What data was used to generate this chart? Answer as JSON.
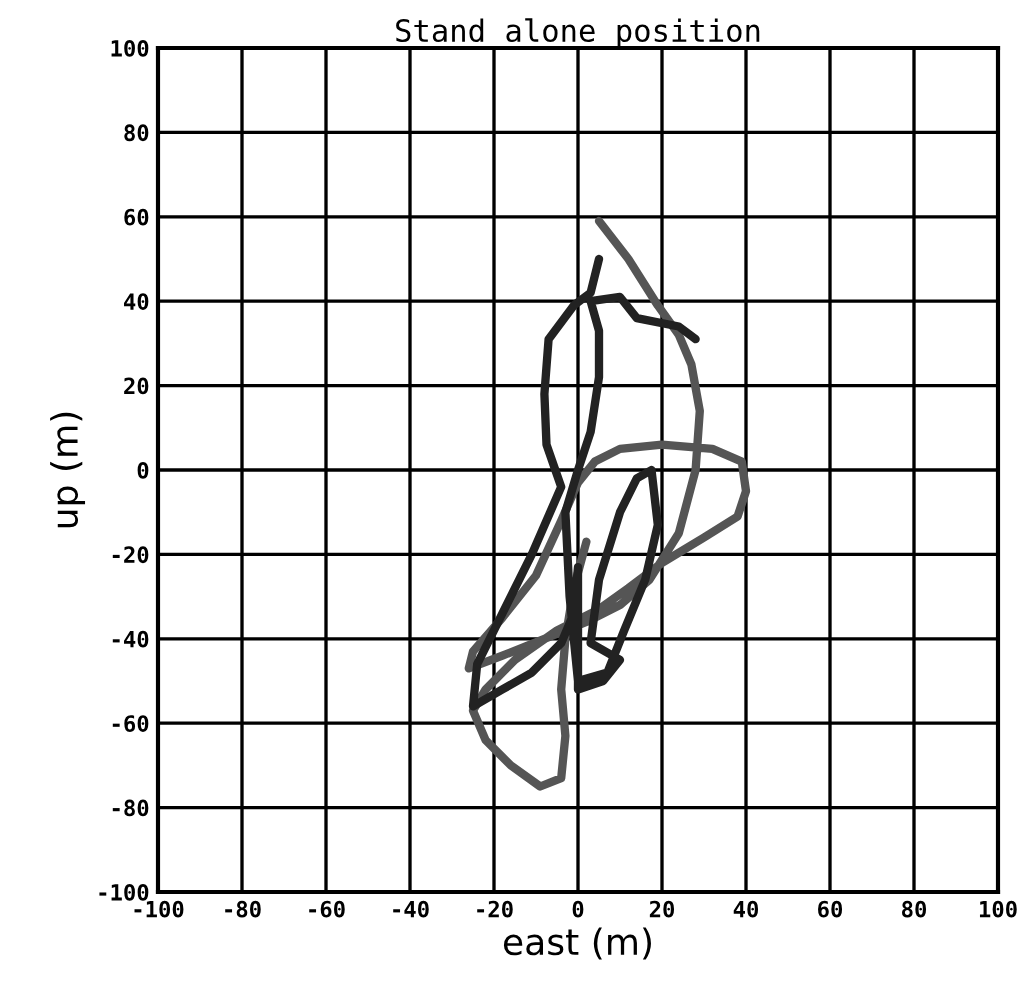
{
  "chart_data": {
    "type": "line",
    "title": "Stand alone position",
    "xlabel": "east (m)",
    "ylabel": "up (m)",
    "xlim": [
      -100,
      100
    ],
    "ylim": [
      -100,
      100
    ],
    "xticks": [
      -100,
      -80,
      -60,
      -40,
      -20,
      0,
      20,
      40,
      60,
      80,
      100
    ],
    "yticks": [
      -100,
      -80,
      -60,
      -40,
      -20,
      0,
      20,
      40,
      60,
      80,
      100
    ],
    "grid": true,
    "line_style": "solid",
    "marker": "none",
    "series": [
      {
        "color": "#555555",
        "x": [
          5,
          12,
          19,
          24,
          27,
          29,
          28,
          24,
          17,
          10,
          2,
          -8,
          -18,
          -26,
          -25,
          -18,
          -10,
          -4,
          0,
          4,
          10,
          20,
          32,
          39,
          40,
          38,
          30,
          20,
          12,
          5,
          -5,
          -15,
          -22,
          -25,
          -22,
          -16,
          -9,
          -4,
          -3,
          -4,
          -3,
          -1,
          2
        ],
        "values": [
          59,
          50,
          39,
          32,
          25,
          14,
          0,
          -15,
          -26,
          -32,
          -36,
          -40,
          -44,
          -47,
          -43,
          -35,
          -25,
          -12,
          -3,
          2,
          5,
          6,
          5,
          2,
          -5,
          -11,
          -16,
          -22,
          -28,
          -33,
          -38,
          -45,
          -52,
          -57,
          -64,
          -70,
          -75,
          -73,
          -63,
          -52,
          -40,
          -28,
          -17
        ]
      },
      {
        "color": "#222222",
        "x": [
          5,
          3,
          -1,
          -7,
          -8,
          -7.5,
          -4,
          -11,
          -18,
          -24,
          -25,
          -18,
          -11,
          -4,
          -1,
          0,
          0,
          0,
          6,
          10,
          3,
          5,
          10,
          14,
          17.5,
          19,
          16,
          11,
          7,
          0,
          -2,
          -3,
          0,
          3,
          5,
          5,
          3,
          10,
          14,
          24,
          28
        ],
        "values": [
          50,
          42,
          39,
          31,
          18,
          6,
          -4,
          -20,
          -34,
          -46,
          -56,
          -52,
          -48,
          -41,
          -34,
          -23,
          -40,
          -52,
          -50,
          -45,
          -41,
          -26,
          -10,
          -2,
          0,
          -13,
          -26,
          -38,
          -48,
          -50,
          -30,
          -10,
          0,
          9,
          22,
          33,
          40,
          41,
          36,
          34,
          31
        ]
      }
    ]
  }
}
